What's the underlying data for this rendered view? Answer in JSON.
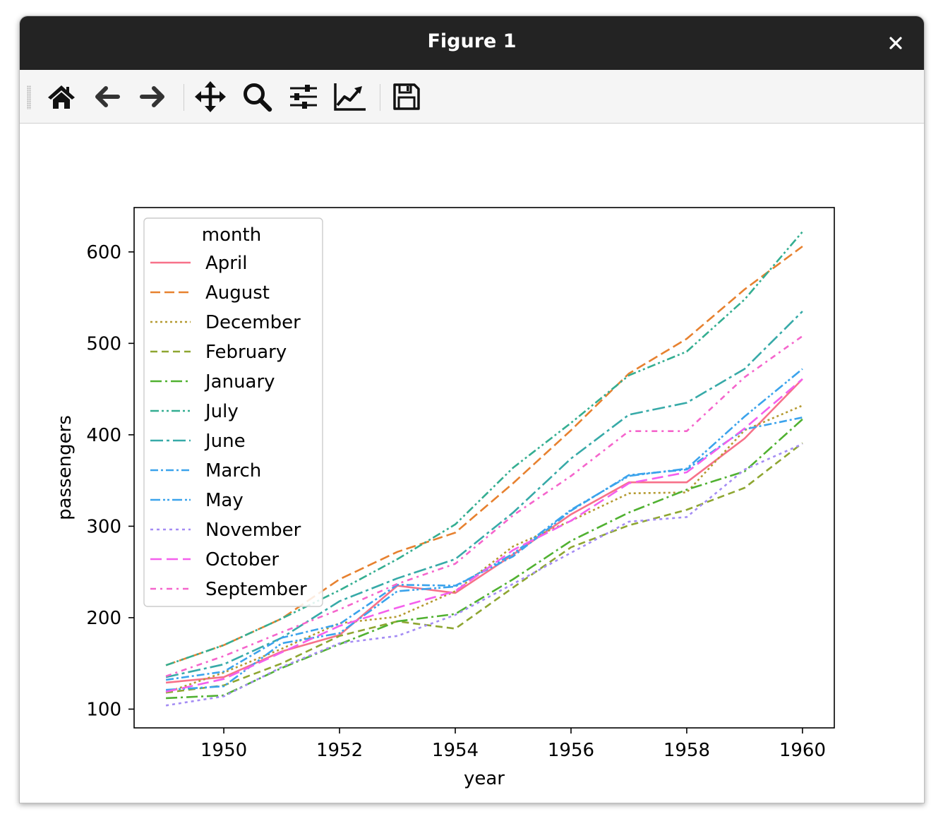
{
  "window": {
    "title": "Figure 1"
  },
  "toolbar": {
    "tools": [
      {
        "name": "home-icon"
      },
      {
        "name": "back-icon"
      },
      {
        "name": "forward-icon"
      },
      {
        "name": "pan-icon"
      },
      {
        "name": "zoom-icon"
      },
      {
        "name": "subplots-icon"
      },
      {
        "name": "customize-icon"
      },
      {
        "name": "save-icon"
      }
    ]
  },
  "chart_data": {
    "type": "line",
    "xlabel": "year",
    "ylabel": "passengers",
    "xlim": [
      1948.45,
      1960.55
    ],
    "ylim": [
      79.5,
      648.5
    ],
    "xticks": [
      1950,
      1952,
      1954,
      1956,
      1958,
      1960
    ],
    "yticks": [
      100,
      200,
      300,
      400,
      500,
      600
    ],
    "grid": false,
    "legend": {
      "title": "month",
      "placement": "top-left"
    },
    "x": [
      1949,
      1950,
      1951,
      1952,
      1953,
      1954,
      1955,
      1956,
      1957,
      1958,
      1959,
      1960
    ],
    "series": [
      {
        "name": "April",
        "color": "#f77189",
        "dash": "solid",
        "values": [
          129,
          135,
          163,
          181,
          235,
          227,
          269,
          313,
          348,
          348,
          396,
          461
        ]
      },
      {
        "name": "August",
        "color": "#e7812f",
        "dash": "dashed",
        "values": [
          148,
          170,
          199,
          242,
          272,
          293,
          347,
          405,
          467,
          505,
          559,
          606
        ]
      },
      {
        "name": "December",
        "color": "#b59a31",
        "dash": "dotted",
        "values": [
          118,
          140,
          166,
          194,
          201,
          229,
          278,
          306,
          336,
          337,
          405,
          432
        ]
      },
      {
        "name": "February",
        "color": "#8ea631",
        "dash": "dashed2",
        "values": [
          118,
          126,
          150,
          180,
          196,
          188,
          233,
          277,
          301,
          318,
          342,
          391
        ]
      },
      {
        "name": "January",
        "color": "#50b131",
        "dash": "dashdot",
        "values": [
          112,
          115,
          145,
          171,
          196,
          204,
          242,
          284,
          315,
          340,
          360,
          417
        ]
      },
      {
        "name": "July",
        "color": "#34ae91",
        "dash": "dashdotdot",
        "values": [
          148,
          170,
          199,
          230,
          264,
          302,
          364,
          413,
          465,
          491,
          548,
          622
        ]
      },
      {
        "name": "June",
        "color": "#37aaa8",
        "dash": "longdashdot",
        "values": [
          135,
          149,
          178,
          218,
          243,
          264,
          315,
          374,
          422,
          435,
          472,
          535
        ]
      },
      {
        "name": "March",
        "color": "#3ba3ec",
        "dash": "dashdot2",
        "values": [
          132,
          141,
          178,
          193,
          236,
          235,
          267,
          317,
          356,
          362,
          406,
          419
        ]
      },
      {
        "name": "May",
        "color": "#3ba3ec",
        "dash": "dashdotdot2",
        "values": [
          121,
          125,
          172,
          183,
          229,
          234,
          270,
          318,
          355,
          363,
          420,
          472
        ]
      },
      {
        "name": "November",
        "color": "#a48cf4",
        "dash": "dotted2",
        "values": [
          104,
          114,
          146,
          172,
          180,
          203,
          237,
          271,
          305,
          310,
          362,
          390
        ]
      },
      {
        "name": "October",
        "color": "#f45fed",
        "dash": "longdash",
        "values": [
          119,
          133,
          162,
          191,
          211,
          229,
          274,
          306,
          347,
          359,
          407,
          461
        ]
      },
      {
        "name": "September",
        "color": "#f565cc",
        "dash": "dashdot3",
        "values": [
          136,
          158,
          184,
          209,
          237,
          259,
          312,
          355,
          404,
          404,
          463,
          508
        ]
      }
    ]
  }
}
